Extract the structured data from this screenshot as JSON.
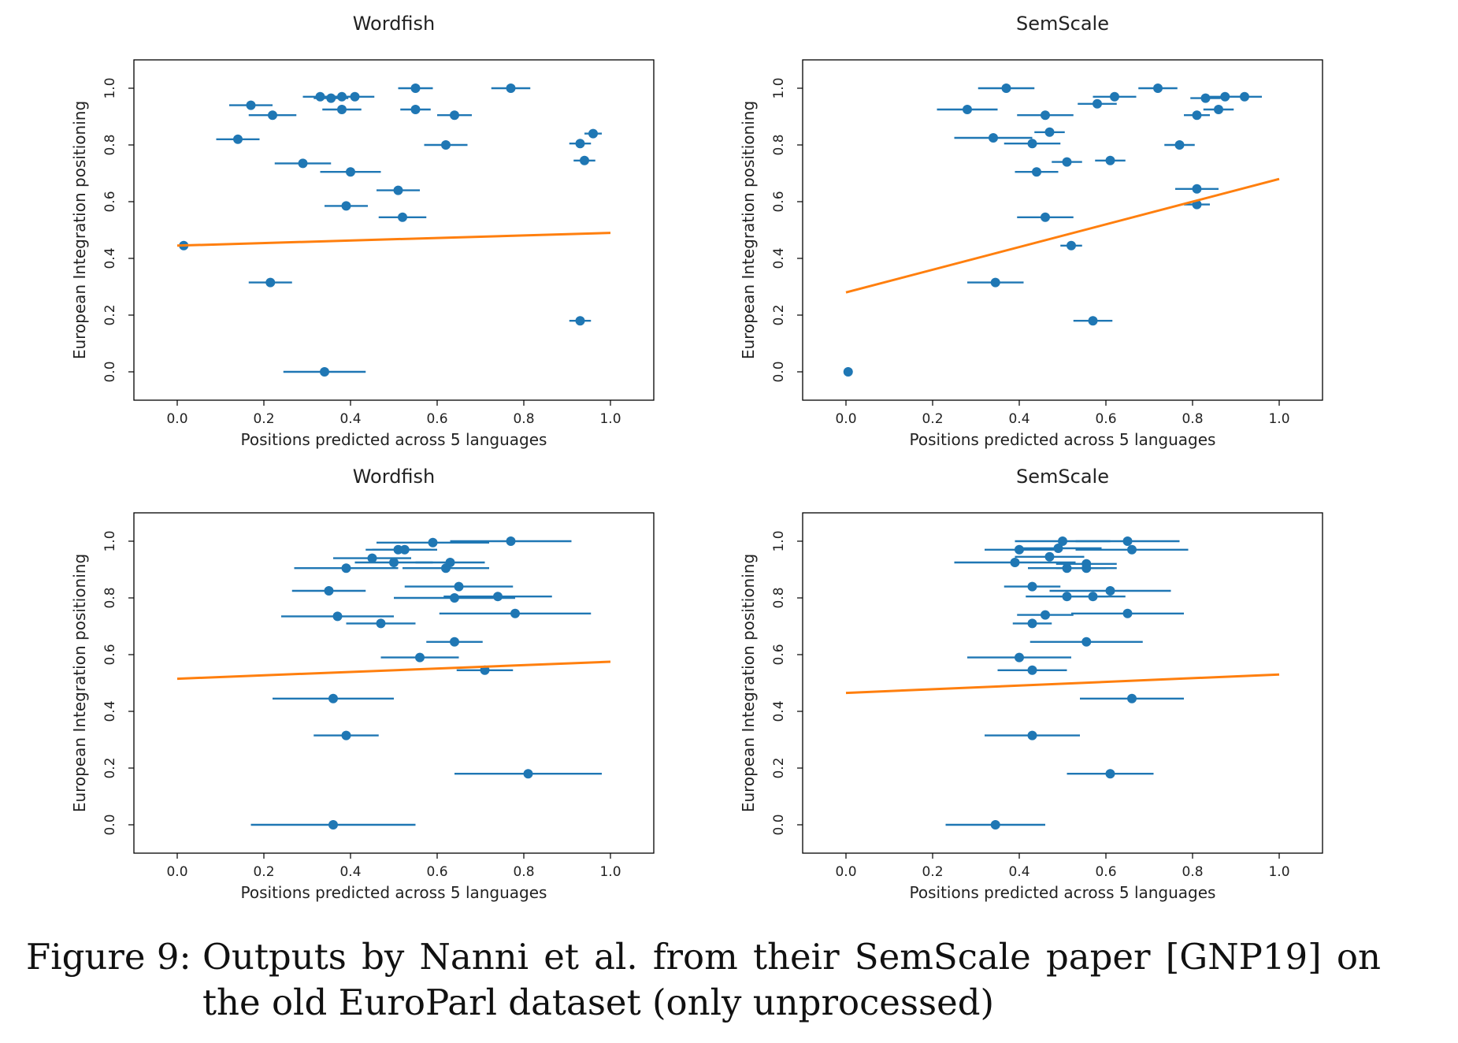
{
  "caption": {
    "label": "Figure 9:",
    "text": "Outputs by Nanni et al. from their SemScale paper [GNP19] on the old EuroParl dataset (only unprocessed)"
  },
  "colors": {
    "points": "#1f77b4",
    "fit": "#ff7f0e",
    "frame": "#000000"
  },
  "chart_data": [
    {
      "type": "scatter",
      "title": "Wordfish",
      "xlabel": "Positions predicted across 5 languages",
      "ylabel": "European Integration positioning",
      "xlim": [
        -0.1,
        1.1
      ],
      "ylim": [
        -0.1,
        1.1
      ],
      "xticks": [
        "0.0",
        "0.2",
        "0.4",
        "0.6",
        "0.8",
        "1.0"
      ],
      "yticks": [
        "0.0",
        "0.2",
        "0.4",
        "0.6",
        "0.8",
        "1.0"
      ],
      "grid": false,
      "points": [
        {
          "x": 0.77,
          "y": 1.0,
          "xerr": 0.045
        },
        {
          "x": 0.55,
          "y": 1.0,
          "xerr": 0.04
        },
        {
          "x": 0.33,
          "y": 0.97,
          "xerr": 0.04
        },
        {
          "x": 0.355,
          "y": 0.965,
          "xerr": 0.04
        },
        {
          "x": 0.38,
          "y": 0.97,
          "xerr": 0.04
        },
        {
          "x": 0.41,
          "y": 0.97,
          "xerr": 0.045
        },
        {
          "x": 0.17,
          "y": 0.94,
          "xerr": 0.05
        },
        {
          "x": 0.38,
          "y": 0.925,
          "xerr": 0.045
        },
        {
          "x": 0.55,
          "y": 0.925,
          "xerr": 0.035
        },
        {
          "x": 0.22,
          "y": 0.905,
          "xerr": 0.055
        },
        {
          "x": 0.64,
          "y": 0.905,
          "xerr": 0.04
        },
        {
          "x": 0.96,
          "y": 0.84,
          "xerr": 0.02
        },
        {
          "x": 0.14,
          "y": 0.82,
          "xerr": 0.05
        },
        {
          "x": 0.93,
          "y": 0.805,
          "xerr": 0.025
        },
        {
          "x": 0.62,
          "y": 0.8,
          "xerr": 0.05
        },
        {
          "x": 0.94,
          "y": 0.745,
          "xerr": 0.025
        },
        {
          "x": 0.29,
          "y": 0.735,
          "xerr": 0.065
        },
        {
          "x": 0.4,
          "y": 0.705,
          "xerr": 0.07
        },
        {
          "x": 0.51,
          "y": 0.64,
          "xerr": 0.05
        },
        {
          "x": 0.39,
          "y": 0.585,
          "xerr": 0.05
        },
        {
          "x": 0.52,
          "y": 0.545,
          "xerr": 0.055
        },
        {
          "x": 0.015,
          "y": 0.445,
          "xerr": 0.0
        },
        {
          "x": 0.215,
          "y": 0.315,
          "xerr": 0.05
        },
        {
          "x": 0.93,
          "y": 0.18,
          "xerr": 0.025
        },
        {
          "x": 0.34,
          "y": 0.0,
          "xerr": 0.095
        }
      ],
      "fit": {
        "x": [
          0.0,
          1.0
        ],
        "y": [
          0.445,
          0.49
        ]
      }
    },
    {
      "type": "scatter",
      "title": "SemScale",
      "xlabel": "Positions predicted across 5 languages",
      "ylabel": "European Integration positioning",
      "xlim": [
        -0.1,
        1.1
      ],
      "ylim": [
        -0.1,
        1.1
      ],
      "xticks": [
        "0.0",
        "0.2",
        "0.4",
        "0.6",
        "0.8",
        "1.0"
      ],
      "yticks": [
        "0.0",
        "0.2",
        "0.4",
        "0.6",
        "0.8",
        "1.0"
      ],
      "grid": false,
      "points": [
        {
          "x": 0.37,
          "y": 1.0,
          "xerr": 0.065
        },
        {
          "x": 0.72,
          "y": 1.0,
          "xerr": 0.045
        },
        {
          "x": 0.62,
          "y": 0.97,
          "xerr": 0.05
        },
        {
          "x": 0.83,
          "y": 0.965,
          "xerr": 0.035
        },
        {
          "x": 0.875,
          "y": 0.97,
          "xerr": 0.035
        },
        {
          "x": 0.92,
          "y": 0.97,
          "xerr": 0.04
        },
        {
          "x": 0.58,
          "y": 0.945,
          "xerr": 0.045
        },
        {
          "x": 0.28,
          "y": 0.925,
          "xerr": 0.07
        },
        {
          "x": 0.86,
          "y": 0.925,
          "xerr": 0.035
        },
        {
          "x": 0.46,
          "y": 0.905,
          "xerr": 0.065
        },
        {
          "x": 0.81,
          "y": 0.905,
          "xerr": 0.03
        },
        {
          "x": 0.47,
          "y": 0.845,
          "xerr": 0.035
        },
        {
          "x": 0.34,
          "y": 0.825,
          "xerr": 0.09
        },
        {
          "x": 0.43,
          "y": 0.805,
          "xerr": 0.065
        },
        {
          "x": 0.77,
          "y": 0.8,
          "xerr": 0.035
        },
        {
          "x": 0.61,
          "y": 0.745,
          "xerr": 0.035
        },
        {
          "x": 0.51,
          "y": 0.74,
          "xerr": 0.035
        },
        {
          "x": 0.44,
          "y": 0.705,
          "xerr": 0.05
        },
        {
          "x": 0.81,
          "y": 0.645,
          "xerr": 0.05
        },
        {
          "x": 0.81,
          "y": 0.59,
          "xerr": 0.03
        },
        {
          "x": 0.46,
          "y": 0.545,
          "xerr": 0.065
        },
        {
          "x": 0.52,
          "y": 0.445,
          "xerr": 0.025
        },
        {
          "x": 0.345,
          "y": 0.315,
          "xerr": 0.065
        },
        {
          "x": 0.57,
          "y": 0.18,
          "xerr": 0.045
        },
        {
          "x": 0.005,
          "y": 0.0,
          "xerr": 0.0
        }
      ],
      "fit": {
        "x": [
          0.0,
          1.0
        ],
        "y": [
          0.28,
          0.68
        ]
      }
    },
    {
      "type": "scatter",
      "title": "Wordfish",
      "xlabel": "Positions predicted across 5 languages",
      "ylabel": "European Integration positioning",
      "xlim": [
        -0.1,
        1.1
      ],
      "ylim": [
        -0.1,
        1.1
      ],
      "xticks": [
        "0.0",
        "0.2",
        "0.4",
        "0.6",
        "0.8",
        "1.0"
      ],
      "yticks": [
        "0.0",
        "0.2",
        "0.4",
        "0.6",
        "0.8",
        "1.0"
      ],
      "grid": false,
      "points": [
        {
          "x": 0.77,
          "y": 1.0,
          "xerr": 0.14
        },
        {
          "x": 0.59,
          "y": 0.995,
          "xerr": 0.13
        },
        {
          "x": 0.51,
          "y": 0.97,
          "xerr": 0.075
        },
        {
          "x": 0.525,
          "y": 0.97,
          "xerr": 0.075
        },
        {
          "x": 0.45,
          "y": 0.94,
          "xerr": 0.09
        },
        {
          "x": 0.5,
          "y": 0.925,
          "xerr": 0.09
        },
        {
          "x": 0.63,
          "y": 0.925,
          "xerr": 0.08
        },
        {
          "x": 0.39,
          "y": 0.905,
          "xerr": 0.12
        },
        {
          "x": 0.62,
          "y": 0.905,
          "xerr": 0.1
        },
        {
          "x": 0.65,
          "y": 0.84,
          "xerr": 0.125
        },
        {
          "x": 0.35,
          "y": 0.825,
          "xerr": 0.085
        },
        {
          "x": 0.74,
          "y": 0.805,
          "xerr": 0.125
        },
        {
          "x": 0.64,
          "y": 0.8,
          "xerr": 0.14
        },
        {
          "x": 0.78,
          "y": 0.745,
          "xerr": 0.175
        },
        {
          "x": 0.37,
          "y": 0.735,
          "xerr": 0.13
        },
        {
          "x": 0.47,
          "y": 0.71,
          "xerr": 0.08
        },
        {
          "x": 0.64,
          "y": 0.645,
          "xerr": 0.065
        },
        {
          "x": 0.56,
          "y": 0.59,
          "xerr": 0.09
        },
        {
          "x": 0.71,
          "y": 0.545,
          "xerr": 0.065
        },
        {
          "x": 0.36,
          "y": 0.445,
          "xerr": 0.14
        },
        {
          "x": 0.39,
          "y": 0.315,
          "xerr": 0.075
        },
        {
          "x": 0.81,
          "y": 0.18,
          "xerr": 0.17
        },
        {
          "x": 0.36,
          "y": 0.0,
          "xerr": 0.19
        }
      ],
      "fit": {
        "x": [
          0.0,
          1.0
        ],
        "y": [
          0.515,
          0.575
        ]
      }
    },
    {
      "type": "scatter",
      "title": "SemScale",
      "xlabel": "Positions predicted across 5 languages",
      "ylabel": "European Integration positioning",
      "xlim": [
        -0.1,
        1.1
      ],
      "ylim": [
        -0.1,
        1.1
      ],
      "xticks": [
        "0.0",
        "0.2",
        "0.4",
        "0.6",
        "0.8",
        "1.0"
      ],
      "yticks": [
        "0.0",
        "0.2",
        "0.4",
        "0.6",
        "0.8",
        "1.0"
      ],
      "grid": false,
      "points": [
        {
          "x": 0.5,
          "y": 1.0,
          "xerr": 0.11
        },
        {
          "x": 0.65,
          "y": 1.0,
          "xerr": 0.12
        },
        {
          "x": 0.4,
          "y": 0.97,
          "xerr": 0.08
        },
        {
          "x": 0.49,
          "y": 0.975,
          "xerr": 0.1
        },
        {
          "x": 0.66,
          "y": 0.97,
          "xerr": 0.13
        },
        {
          "x": 0.47,
          "y": 0.945,
          "xerr": 0.08
        },
        {
          "x": 0.39,
          "y": 0.925,
          "xerr": 0.14
        },
        {
          "x": 0.51,
          "y": 0.905,
          "xerr": 0.09
        },
        {
          "x": 0.555,
          "y": 0.905,
          "xerr": 0.07
        },
        {
          "x": 0.555,
          "y": 0.92,
          "xerr": 0.07
        },
        {
          "x": 0.43,
          "y": 0.84,
          "xerr": 0.065
        },
        {
          "x": 0.61,
          "y": 0.825,
          "xerr": 0.14
        },
        {
          "x": 0.51,
          "y": 0.805,
          "xerr": 0.095
        },
        {
          "x": 0.57,
          "y": 0.805,
          "xerr": 0.075
        },
        {
          "x": 0.65,
          "y": 0.745,
          "xerr": 0.13
        },
        {
          "x": 0.46,
          "y": 0.74,
          "xerr": 0.065
        },
        {
          "x": 0.43,
          "y": 0.71,
          "xerr": 0.045
        },
        {
          "x": 0.555,
          "y": 0.645,
          "xerr": 0.13
        },
        {
          "x": 0.4,
          "y": 0.59,
          "xerr": 0.12
        },
        {
          "x": 0.43,
          "y": 0.545,
          "xerr": 0.08
        },
        {
          "x": 0.66,
          "y": 0.445,
          "xerr": 0.12
        },
        {
          "x": 0.43,
          "y": 0.315,
          "xerr": 0.11
        },
        {
          "x": 0.61,
          "y": 0.18,
          "xerr": 0.1
        },
        {
          "x": 0.345,
          "y": 0.0,
          "xerr": 0.115
        }
      ],
      "fit": {
        "x": [
          0.0,
          1.0
        ],
        "y": [
          0.465,
          0.53
        ]
      }
    }
  ]
}
